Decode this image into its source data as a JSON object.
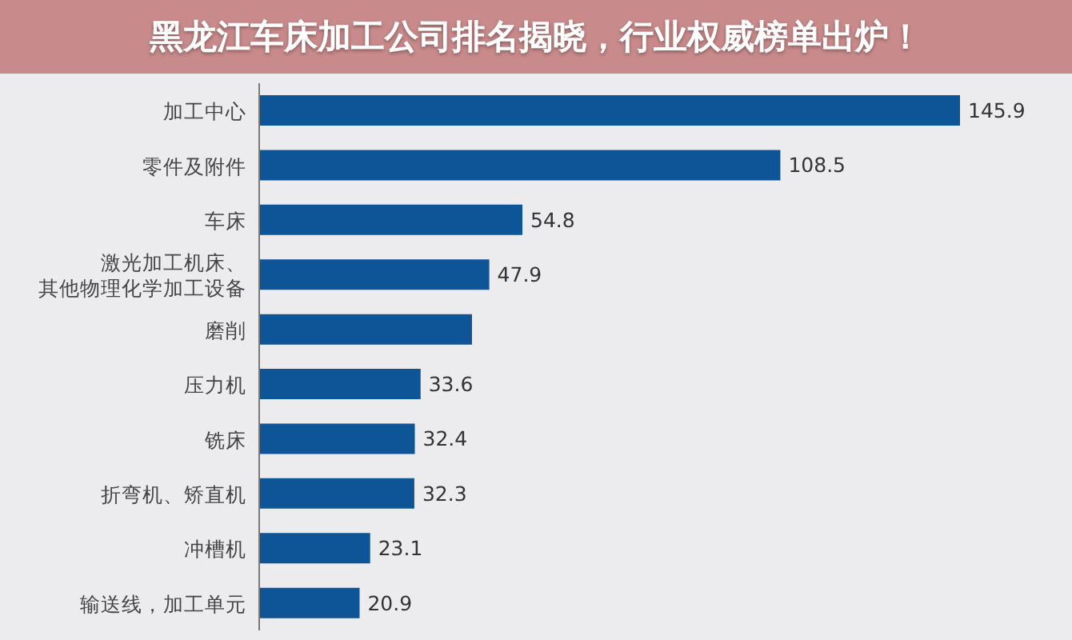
{
  "chart_data": {
    "type": "bar",
    "orientation": "horizontal",
    "title": "黑龙江车床加工公司排名揭晓，行业权威榜单出炉！",
    "categories": [
      "加工中心",
      "零件及附件",
      "车床",
      "激光加工机床、其他物理化学加工设备",
      "磨削",
      "压力机",
      "铣床",
      "折弯机、矫直机",
      "冲槽机",
      "输送线，加工单元"
    ],
    "values": [
      145.9,
      108.5,
      54.8,
      47.9,
      44.3,
      33.6,
      32.4,
      32.3,
      23.1,
      20.9
    ],
    "value_labels": [
      "145.9",
      "108.5",
      "54.8",
      "47.9",
      null,
      "33.6",
      "32.4",
      "32.3",
      "23.1",
      "20.9"
    ],
    "color": "#0e5597"
  }
}
